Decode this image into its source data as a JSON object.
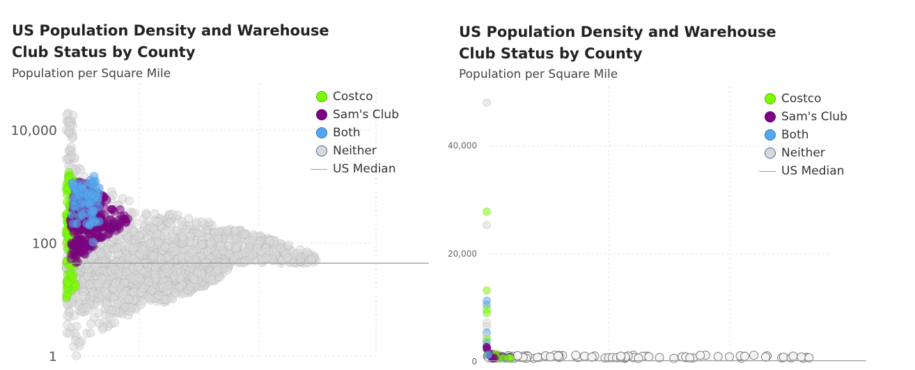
{
  "colors": {
    "costco": "#7CFC00",
    "sams_club": "#800080",
    "both": "#55A8F0",
    "neither": "#D9D9D9",
    "median_line": "#999999"
  },
  "chart_data": [
    {
      "type": "scatter",
      "title_line1": "US Population Density and Warehouse",
      "title_line2": "Club Status by County",
      "subtitle": "Population per Square Mile",
      "y_scale": "log",
      "ylim": [
        1,
        50000
      ],
      "y_ticks": [
        1,
        100,
        10000
      ],
      "y_tick_labels": [
        "1",
        "100",
        "10,000"
      ],
      "grid": true,
      "legend_position": "top-right",
      "legend": [
        "Costco",
        "Sam's Club",
        "Both",
        "Neither",
        "US Median"
      ],
      "median_value": 44,
      "series_shape": {
        "note": "beeswarm of county density values by club status",
        "neither_range": [
          1,
          20000
        ],
        "costco_range": [
          3,
          30000
        ],
        "sams_club_range": [
          12,
          1500
        ],
        "both_range": [
          90,
          5000
        ]
      }
    },
    {
      "type": "scatter",
      "title_line1": "US Population Density and Warehouse",
      "title_line2": "Club Status by County",
      "subtitle": "Population per Square Mile",
      "y_scale": "linear",
      "ylim": [
        0,
        50000
      ],
      "y_ticks": [
        0,
        20000,
        40000
      ],
      "y_tick_labels": [
        "0",
        "20,000",
        "40,000"
      ],
      "grid": true,
      "legend_position": "top-right",
      "legend": [
        "Costco",
        "Sam's Club",
        "Both",
        "Neither",
        "US Median"
      ],
      "median_value": 44,
      "outliers": [
        {
          "status": "neither",
          "value": 48000
        },
        {
          "status": "costco",
          "value": 27800
        },
        {
          "status": "neither",
          "value": 25300
        },
        {
          "status": "costco",
          "value": 13200
        },
        {
          "status": "both",
          "value": 11300
        },
        {
          "status": "both",
          "value": 10500
        },
        {
          "status": "costco",
          "value": 9700
        },
        {
          "status": "costco",
          "value": 9000
        },
        {
          "status": "neither",
          "value": 7200
        },
        {
          "status": "neither",
          "value": 6500
        },
        {
          "status": "both",
          "value": 5400
        },
        {
          "status": "neither",
          "value": 4700
        },
        {
          "status": "costco",
          "value": 4100
        },
        {
          "status": "both",
          "value": 3500
        },
        {
          "status": "neither",
          "value": 2900
        },
        {
          "status": "neither",
          "value": 2200
        }
      ]
    }
  ]
}
